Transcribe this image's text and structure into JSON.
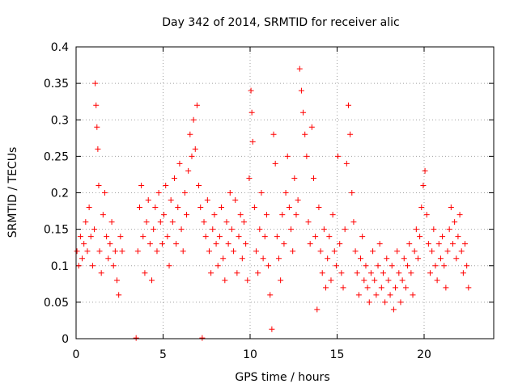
{
  "chart_data": {
    "type": "scatter",
    "title": "Day 342 of 2014, SRMTID for receiver alic",
    "xlabel": "GPS time / hours",
    "ylabel": "SRMTID / TECUs",
    "xlim": [
      0,
      24
    ],
    "ylim": [
      0,
      0.4
    ],
    "grid": true,
    "xticks": [
      0,
      5,
      10,
      15,
      20
    ],
    "xtick_labels": [
      "0",
      "5",
      "10",
      "15",
      "20"
    ],
    "yticks": [
      0,
      0.05,
      0.1,
      0.15,
      0.2,
      0.25,
      0.3,
      0.35,
      0.4
    ],
    "ytick_labels": [
      "0",
      "0.05",
      "0.1",
      "0.15",
      "0.2",
      "0.25",
      "0.3",
      "0.35",
      "0.4"
    ],
    "marker": "+",
    "color": "#ff0000",
    "series": [
      {
        "name": "SRMTID",
        "points": [
          [
            0.05,
            0.12
          ],
          [
            0.15,
            0.1
          ],
          [
            0.25,
            0.14
          ],
          [
            0.35,
            0.11
          ],
          [
            0.45,
            0.13
          ],
          [
            0.55,
            0.16
          ],
          [
            0.65,
            0.12
          ],
          [
            0.75,
            0.18
          ],
          [
            0.85,
            0.14
          ],
          [
            0.95,
            0.1
          ],
          [
            1.05,
            0.15
          ],
          [
            1.1,
            0.35
          ],
          [
            1.15,
            0.32
          ],
          [
            1.2,
            0.29
          ],
          [
            1.25,
            0.26
          ],
          [
            1.3,
            0.21
          ],
          [
            1.35,
            0.12
          ],
          [
            1.45,
            0.09
          ],
          [
            1.55,
            0.17
          ],
          [
            1.65,
            0.2
          ],
          [
            1.75,
            0.14
          ],
          [
            1.85,
            0.11
          ],
          [
            1.95,
            0.13
          ],
          [
            2.05,
            0.16
          ],
          [
            2.15,
            0.1
          ],
          [
            2.25,
            0.12
          ],
          [
            2.35,
            0.08
          ],
          [
            2.45,
            0.06
          ],
          [
            2.55,
            0.14
          ],
          [
            2.65,
            0.12
          ],
          [
            3.45,
            0.001
          ],
          [
            3.55,
            0.12
          ],
          [
            3.65,
            0.18
          ],
          [
            3.75,
            0.21
          ],
          [
            3.85,
            0.14
          ],
          [
            3.95,
            0.09
          ],
          [
            4.05,
            0.16
          ],
          [
            4.15,
            0.19
          ],
          [
            4.25,
            0.13
          ],
          [
            4.35,
            0.08
          ],
          [
            4.45,
            0.15
          ],
          [
            4.55,
            0.18
          ],
          [
            4.65,
            0.12
          ],
          [
            4.75,
            0.2
          ],
          [
            4.85,
            0.16
          ],
          [
            4.95,
            0.13
          ],
          [
            5.05,
            0.17
          ],
          [
            5.15,
            0.21
          ],
          [
            5.25,
            0.14
          ],
          [
            5.35,
            0.1
          ],
          [
            5.45,
            0.19
          ],
          [
            5.55,
            0.16
          ],
          [
            5.65,
            0.22
          ],
          [
            5.75,
            0.13
          ],
          [
            5.85,
            0.18
          ],
          [
            5.95,
            0.24
          ],
          [
            6.05,
            0.15
          ],
          [
            6.15,
            0.12
          ],
          [
            6.25,
            0.2
          ],
          [
            6.35,
            0.17
          ],
          [
            6.45,
            0.23
          ],
          [
            6.55,
            0.28
          ],
          [
            6.65,
            0.25
          ],
          [
            6.75,
            0.3
          ],
          [
            6.85,
            0.26
          ],
          [
            6.95,
            0.32
          ],
          [
            7.05,
            0.21
          ],
          [
            7.15,
            0.18
          ],
          [
            7.25,
            0.001
          ],
          [
            7.35,
            0.16
          ],
          [
            7.45,
            0.14
          ],
          [
            7.55,
            0.19
          ],
          [
            7.65,
            0.12
          ],
          [
            7.75,
            0.09
          ],
          [
            7.85,
            0.15
          ],
          [
            7.95,
            0.17
          ],
          [
            8.05,
            0.13
          ],
          [
            8.15,
            0.1
          ],
          [
            8.25,
            0.14
          ],
          [
            8.35,
            0.18
          ],
          [
            8.45,
            0.11
          ],
          [
            8.55,
            0.08
          ],
          [
            8.65,
            0.16
          ],
          [
            8.75,
            0.13
          ],
          [
            8.85,
            0.2
          ],
          [
            8.95,
            0.15
          ],
          [
            9.05,
            0.12
          ],
          [
            9.15,
            0.19
          ],
          [
            9.25,
            0.09
          ],
          [
            9.35,
            0.14
          ],
          [
            9.45,
            0.17
          ],
          [
            9.55,
            0.11
          ],
          [
            9.65,
            0.16
          ],
          [
            9.75,
            0.13
          ],
          [
            9.85,
            0.08
          ],
          [
            9.95,
            0.22
          ],
          [
            10.05,
            0.34
          ],
          [
            10.1,
            0.31
          ],
          [
            10.15,
            0.27
          ],
          [
            10.25,
            0.18
          ],
          [
            10.35,
            0.12
          ],
          [
            10.45,
            0.09
          ],
          [
            10.55,
            0.15
          ],
          [
            10.65,
            0.2
          ],
          [
            10.75,
            0.11
          ],
          [
            10.85,
            0.14
          ],
          [
            10.95,
            0.17
          ],
          [
            11.05,
            0.1
          ],
          [
            11.15,
            0.06
          ],
          [
            11.25,
            0.013
          ],
          [
            11.35,
            0.28
          ],
          [
            11.45,
            0.24
          ],
          [
            11.55,
            0.14
          ],
          [
            11.65,
            0.11
          ],
          [
            11.75,
            0.08
          ],
          [
            11.85,
            0.17
          ],
          [
            11.95,
            0.13
          ],
          [
            12.05,
            0.2
          ],
          [
            12.15,
            0.25
          ],
          [
            12.25,
            0.18
          ],
          [
            12.35,
            0.15
          ],
          [
            12.45,
            0.12
          ],
          [
            12.55,
            0.22
          ],
          [
            12.65,
            0.17
          ],
          [
            12.75,
            0.19
          ],
          [
            12.85,
            0.37
          ],
          [
            12.95,
            0.34
          ],
          [
            13.05,
            0.31
          ],
          [
            13.15,
            0.28
          ],
          [
            13.25,
            0.25
          ],
          [
            13.35,
            0.16
          ],
          [
            13.45,
            0.13
          ],
          [
            13.55,
            0.29
          ],
          [
            13.65,
            0.22
          ],
          [
            13.75,
            0.14
          ],
          [
            13.85,
            0.04
          ],
          [
            13.95,
            0.18
          ],
          [
            14.05,
            0.12
          ],
          [
            14.15,
            0.09
          ],
          [
            14.25,
            0.15
          ],
          [
            14.35,
            0.07
          ],
          [
            14.45,
            0.11
          ],
          [
            14.55,
            0.14
          ],
          [
            14.65,
            0.08
          ],
          [
            14.75,
            0.17
          ],
          [
            14.85,
            0.12
          ],
          [
            14.95,
            0.1
          ],
          [
            15.05,
            0.25
          ],
          [
            15.15,
            0.13
          ],
          [
            15.25,
            0.09
          ],
          [
            15.35,
            0.07
          ],
          [
            15.45,
            0.15
          ],
          [
            15.55,
            0.24
          ],
          [
            15.65,
            0.32
          ],
          [
            15.75,
            0.28
          ],
          [
            15.85,
            0.2
          ],
          [
            15.95,
            0.16
          ],
          [
            16.05,
            0.12
          ],
          [
            16.15,
            0.09
          ],
          [
            16.25,
            0.06
          ],
          [
            16.35,
            0.11
          ],
          [
            16.45,
            0.14
          ],
          [
            16.55,
            0.08
          ],
          [
            16.65,
            0.1
          ],
          [
            16.75,
            0.07
          ],
          [
            16.85,
            0.05
          ],
          [
            16.95,
            0.09
          ],
          [
            17.05,
            0.12
          ],
          [
            17.15,
            0.08
          ],
          [
            17.25,
            0.06
          ],
          [
            17.35,
            0.1
          ],
          [
            17.45,
            0.13
          ],
          [
            17.55,
            0.07
          ],
          [
            17.65,
            0.09
          ],
          [
            17.75,
            0.05
          ],
          [
            17.85,
            0.11
          ],
          [
            17.95,
            0.08
          ],
          [
            18.05,
            0.06
          ],
          [
            18.15,
            0.1
          ],
          [
            18.25,
            0.04
          ],
          [
            18.35,
            0.07
          ],
          [
            18.45,
            0.12
          ],
          [
            18.55,
            0.09
          ],
          [
            18.65,
            0.05
          ],
          [
            18.75,
            0.08
          ],
          [
            18.85,
            0.11
          ],
          [
            18.95,
            0.07
          ],
          [
            19.05,
            0.1
          ],
          [
            19.15,
            0.13
          ],
          [
            19.25,
            0.09
          ],
          [
            19.35,
            0.06
          ],
          [
            19.45,
            0.12
          ],
          [
            19.55,
            0.15
          ],
          [
            19.65,
            0.11
          ],
          [
            19.75,
            0.14
          ],
          [
            19.85,
            0.18
          ],
          [
            19.95,
            0.21
          ],
          [
            20.05,
            0.23
          ],
          [
            20.15,
            0.17
          ],
          [
            20.25,
            0.13
          ],
          [
            20.35,
            0.09
          ],
          [
            20.45,
            0.12
          ],
          [
            20.55,
            0.15
          ],
          [
            20.65,
            0.1
          ],
          [
            20.75,
            0.08
          ],
          [
            20.85,
            0.13
          ],
          [
            20.95,
            0.11
          ],
          [
            21.05,
            0.14
          ],
          [
            21.15,
            0.1
          ],
          [
            21.25,
            0.07
          ],
          [
            21.35,
            0.12
          ],
          [
            21.45,
            0.15
          ],
          [
            21.55,
            0.18
          ],
          [
            21.65,
            0.13
          ],
          [
            21.75,
            0.16
          ],
          [
            21.85,
            0.11
          ],
          [
            21.95,
            0.14
          ],
          [
            22.05,
            0.17
          ],
          [
            22.15,
            0.12
          ],
          [
            22.25,
            0.09
          ],
          [
            22.35,
            0.13
          ],
          [
            22.45,
            0.1
          ],
          [
            22.55,
            0.07
          ]
        ]
      }
    ]
  }
}
